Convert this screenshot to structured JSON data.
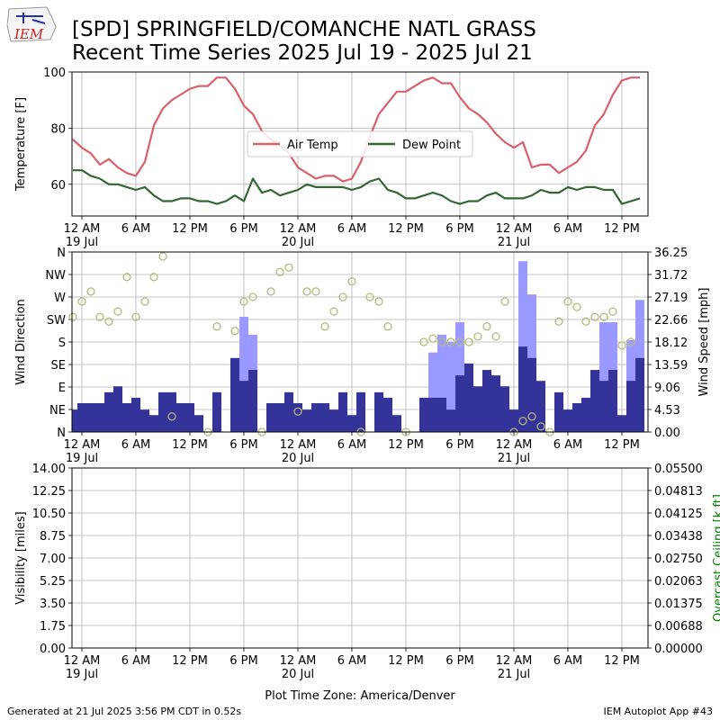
{
  "logo": "IEM",
  "footer": {
    "left": "Generated at 21 Jul 2025 3:56 PM CDT in 0.52s",
    "right": "IEM Autoplot App #43"
  },
  "chart_data": [
    {
      "type": "line",
      "title": "[SPD] SPRINGFIELD/COMANCHE NATL GRASS",
      "subtitle": "Recent Time Series 2025 Jul 19 - 2025 Jul 21",
      "ylabel": "Temperature [F]",
      "legend": "center",
      "grid": true,
      "xlim": [
        "2025-07-18T22:54",
        "2025-07-21T14:54"
      ],
      "xticks": [
        {
          "value": "2025-07-19T00:00",
          "label": "12 AM\n19 Jul"
        },
        {
          "value": "2025-07-19T06:00",
          "label": "6 AM"
        },
        {
          "value": "2025-07-19T12:00",
          "label": "12 PM"
        },
        {
          "value": "2025-07-19T18:00",
          "label": "6 PM"
        },
        {
          "value": "2025-07-20T00:00",
          "label": "12 AM\n20 Jul"
        },
        {
          "value": "2025-07-20T06:00",
          "label": "6 AM"
        },
        {
          "value": "2025-07-20T12:00",
          "label": "12 PM"
        },
        {
          "value": "2025-07-20T18:00",
          "label": "6 PM"
        },
        {
          "value": "2025-07-21T00:00",
          "label": "12 AM\n21 Jul"
        },
        {
          "value": "2025-07-21T06:00",
          "label": "6 AM"
        },
        {
          "value": "2025-07-21T12:00",
          "label": "12 PM"
        }
      ],
      "ylim": [
        48.7,
        100
      ],
      "yticks": [
        60,
        80,
        100
      ],
      "x": [
        "2025-07-18T23:00",
        "2025-07-19T00:00",
        "2025-07-19T01:00",
        "2025-07-19T02:00",
        "2025-07-19T03:00",
        "2025-07-19T04:00",
        "2025-07-19T05:00",
        "2025-07-19T06:00",
        "2025-07-19T07:00",
        "2025-07-19T08:00",
        "2025-07-19T09:00",
        "2025-07-19T10:00",
        "2025-07-19T11:00",
        "2025-07-19T12:00",
        "2025-07-19T13:00",
        "2025-07-19T14:00",
        "2025-07-19T15:00",
        "2025-07-19T16:00",
        "2025-07-19T17:00",
        "2025-07-19T18:00",
        "2025-07-19T19:00",
        "2025-07-19T20:00",
        "2025-07-19T21:00",
        "2025-07-19T22:00",
        "2025-07-19T23:00",
        "2025-07-20T00:00",
        "2025-07-20T01:00",
        "2025-07-20T02:00",
        "2025-07-20T03:00",
        "2025-07-20T04:00",
        "2025-07-20T05:00",
        "2025-07-20T06:00",
        "2025-07-20T07:00",
        "2025-07-20T08:00",
        "2025-07-20T09:00",
        "2025-07-20T10:00",
        "2025-07-20T11:00",
        "2025-07-20T12:00",
        "2025-07-20T13:00",
        "2025-07-20T14:00",
        "2025-07-20T15:00",
        "2025-07-20T16:00",
        "2025-07-20T17:00",
        "2025-07-20T18:00",
        "2025-07-20T19:00",
        "2025-07-20T20:00",
        "2025-07-20T21:00",
        "2025-07-20T22:00",
        "2025-07-20T23:00",
        "2025-07-21T00:00",
        "2025-07-21T01:00",
        "2025-07-21T02:00",
        "2025-07-21T03:00",
        "2025-07-21T04:00",
        "2025-07-21T05:00",
        "2025-07-21T06:00",
        "2025-07-21T07:00",
        "2025-07-21T08:00",
        "2025-07-21T09:00",
        "2025-07-21T10:00",
        "2025-07-21T11:00",
        "2025-07-21T12:00",
        "2025-07-21T13:00",
        "2025-07-21T14:00"
      ],
      "series": [
        {
          "name": "Air Temp",
          "color": "#d9606a",
          "values": [
            76,
            73,
            71,
            67,
            69,
            66,
            64,
            63,
            68,
            81,
            87,
            90,
            92,
            94,
            95,
            95,
            98,
            98,
            94,
            88,
            85,
            79,
            76,
            74,
            71,
            66,
            64,
            62,
            63,
            63,
            61,
            62,
            68,
            77,
            85,
            89,
            93,
            93,
            95,
            97,
            98,
            96,
            96,
            91,
            87,
            85,
            82,
            78,
            75,
            73,
            75,
            66,
            67,
            67,
            64,
            66,
            68,
            72,
            81,
            85,
            92,
            97,
            98,
            98
          ]
        },
        {
          "name": "Dew Point",
          "color": "#336633",
          "values": [
            65,
            65,
            63,
            62,
            60,
            60,
            59,
            58,
            59,
            56,
            54,
            54,
            55,
            55,
            54,
            54,
            53,
            54,
            56,
            54,
            62,
            57,
            58,
            56,
            57,
            58,
            60,
            59,
            59,
            59,
            59,
            58,
            59,
            61,
            62,
            58,
            57,
            55,
            55,
            56,
            57,
            56,
            54,
            53,
            54,
            54,
            56,
            57,
            55,
            55,
            55,
            56,
            58,
            57,
            57,
            59,
            58,
            59,
            59,
            58,
            58,
            53,
            54,
            55
          ]
        }
      ]
    },
    {
      "type": "bar",
      "ylabel": "Wind Direction",
      "y2label": "Wind Speed [mph]",
      "grid": true,
      "xlim": [
        "2025-07-18T22:54",
        "2025-07-21T14:54"
      ],
      "xticks": [
        {
          "value": "2025-07-19T00:00",
          "label": "12 AM\n19 Jul"
        },
        {
          "value": "2025-07-19T06:00",
          "label": "6 AM"
        },
        {
          "value": "2025-07-19T12:00",
          "label": "12 PM"
        },
        {
          "value": "2025-07-19T18:00",
          "label": "6 PM"
        },
        {
          "value": "2025-07-20T00:00",
          "label": "12 AM\n20 Jul"
        },
        {
          "value": "2025-07-20T06:00",
          "label": "6 AM"
        },
        {
          "value": "2025-07-20T12:00",
          "label": "12 PM"
        },
        {
          "value": "2025-07-20T18:00",
          "label": "6 PM"
        },
        {
          "value": "2025-07-21T00:00",
          "label": "12 AM\n21 Jul"
        },
        {
          "value": "2025-07-21T06:00",
          "label": "6 AM"
        },
        {
          "value": "2025-07-21T12:00",
          "label": "12 PM"
        }
      ],
      "ylim": [
        0,
        360
      ],
      "yticks": [
        {
          "value": 0,
          "label": "N"
        },
        {
          "value": 45,
          "label": "NE"
        },
        {
          "value": 90,
          "label": "E"
        },
        {
          "value": 135,
          "label": "SE"
        },
        {
          "value": 180,
          "label": "S"
        },
        {
          "value": 225,
          "label": "SW"
        },
        {
          "value": 270,
          "label": "W"
        },
        {
          "value": 315,
          "label": "NW"
        },
        {
          "value": 360,
          "label": "N"
        }
      ],
      "y2lim": [
        0,
        36.25
      ],
      "y2ticks": [
        {
          "value": 0,
          "label": "0.00"
        },
        4.53,
        9.06,
        13.59,
        18.12,
        22.66,
        27.19,
        31.72,
        36.25
      ],
      "x": [
        "2025-07-18T23:00",
        "2025-07-19T00:00",
        "2025-07-19T01:00",
        "2025-07-19T02:00",
        "2025-07-19T03:00",
        "2025-07-19T04:00",
        "2025-07-19T05:00",
        "2025-07-19T06:00",
        "2025-07-19T07:00",
        "2025-07-19T08:00",
        "2025-07-19T09:00",
        "2025-07-19T10:00",
        "2025-07-19T11:00",
        "2025-07-19T12:00",
        "2025-07-19T13:00",
        "2025-07-19T14:00",
        "2025-07-19T15:00",
        "2025-07-19T16:00",
        "2025-07-19T17:00",
        "2025-07-19T18:00",
        "2025-07-19T19:00",
        "2025-07-19T20:00",
        "2025-07-19T21:00",
        "2025-07-19T22:00",
        "2025-07-19T23:00",
        "2025-07-20T00:00",
        "2025-07-20T01:00",
        "2025-07-20T02:00",
        "2025-07-20T03:00",
        "2025-07-20T04:00",
        "2025-07-20T05:00",
        "2025-07-20T06:00",
        "2025-07-20T07:00",
        "2025-07-20T08:00",
        "2025-07-20T09:00",
        "2025-07-20T10:00",
        "2025-07-20T11:00",
        "2025-07-20T12:00",
        "2025-07-20T13:00",
        "2025-07-20T14:00",
        "2025-07-20T15:00",
        "2025-07-20T16:00",
        "2025-07-20T17:00",
        "2025-07-20T18:00",
        "2025-07-20T19:00",
        "2025-07-20T20:00",
        "2025-07-20T21:00",
        "2025-07-20T22:00",
        "2025-07-20T23:00",
        "2025-07-21T00:00",
        "2025-07-21T01:00",
        "2025-07-21T02:00",
        "2025-07-21T03:00",
        "2025-07-21T04:00",
        "2025-07-21T05:00",
        "2025-07-21T06:00",
        "2025-07-21T07:00",
        "2025-07-21T08:00",
        "2025-07-21T09:00",
        "2025-07-21T10:00",
        "2025-07-21T11:00",
        "2025-07-21T12:00",
        "2025-07-21T13:00",
        "2025-07-21T14:00"
      ],
      "series": [
        {
          "type": "bar",
          "axis": "y2",
          "color": "#9999ff",
          "values": [
            null,
            null,
            null,
            null,
            null,
            null,
            null,
            null,
            null,
            null,
            null,
            null,
            null,
            null,
            null,
            null,
            null,
            null,
            null,
            23.2,
            19.6,
            null,
            null,
            null,
            null,
            null,
            null,
            null,
            null,
            null,
            null,
            null,
            null,
            null,
            null,
            null,
            null,
            null,
            null,
            null,
            16,
            19.6,
            18.1,
            22.1,
            null,
            null,
            null,
            null,
            null,
            null,
            34.4,
            27.7,
            null,
            null,
            null,
            null,
            null,
            null,
            null,
            22.1,
            22.1,
            null,
            18.5,
            26.6
          ]
        },
        {
          "type": "bar",
          "axis": "y2",
          "color": "#333399",
          "values": [
            4.5,
            5.8,
            5.8,
            5.8,
            8,
            9.2,
            5.8,
            6.9,
            4.5,
            3.4,
            8,
            8,
            5.8,
            5.8,
            3.4,
            0,
            8,
            0,
            14.9,
            10.3,
            12.5,
            0,
            5.8,
            5.8,
            8,
            5.8,
            4.5,
            5.8,
            5.8,
            4.5,
            8,
            3.4,
            8,
            0,
            8,
            6.9,
            3.4,
            0,
            0,
            6.9,
            6.9,
            6.9,
            4.5,
            11.4,
            13.8,
            9.2,
            12.5,
            11.4,
            9.2,
            4.5,
            17.2,
            14.9,
            10.3,
            0,
            8,
            4.5,
            5.8,
            6.9,
            12.5,
            10.3,
            12.5,
            3.4,
            10.3,
            14.9
          ]
        },
        {
          "type": "scatter",
          "color": "#b8b87a",
          "values": [
            230,
            261,
            281,
            230,
            221,
            241,
            310,
            230,
            261,
            310,
            351,
            31,
            null,
            null,
            null,
            0,
            211,
            null,
            202,
            261,
            270,
            0,
            281,
            320,
            329,
            41,
            281,
            281,
            211,
            241,
            270,
            301,
            0,
            270,
            261,
            211,
            null,
            0,
            null,
            180,
            187,
            180,
            180,
            180,
            180,
            191,
            211,
            191,
            261,
            0,
            22,
            31,
            11,
            0,
            221,
            261,
            250,
            221,
            230,
            230,
            241,
            173,
            180,
            null
          ]
        }
      ]
    },
    {
      "type": "line",
      "ylabel": "Visibility [miles]",
      "y2label": "Overcast Ceiling [k ft]",
      "y2label_color": "#008000",
      "xlabel": "Plot Time Zone: America/Denver",
      "grid": true,
      "xlim": [
        "2025-07-18T22:54",
        "2025-07-21T14:54"
      ],
      "xticks": [
        {
          "value": "2025-07-19T00:00",
          "label": "12 AM\n19 Jul"
        },
        {
          "value": "2025-07-19T06:00",
          "label": "6 AM"
        },
        {
          "value": "2025-07-19T12:00",
          "label": "12 PM"
        },
        {
          "value": "2025-07-19T18:00",
          "label": "6 PM"
        },
        {
          "value": "2025-07-20T00:00",
          "label": "12 AM\n20 Jul"
        },
        {
          "value": "2025-07-20T06:00",
          "label": "6 AM"
        },
        {
          "value": "2025-07-20T12:00",
          "label": "12 PM"
        },
        {
          "value": "2025-07-20T18:00",
          "label": "6 PM"
        },
        {
          "value": "2025-07-21T00:00",
          "label": "12 AM\n21 Jul"
        },
        {
          "value": "2025-07-21T06:00",
          "label": "6 AM"
        },
        {
          "value": "2025-07-21T12:00",
          "label": "12 PM"
        }
      ],
      "ylim": [
        0,
        14
      ],
      "yticks": [
        {
          "value": 0,
          "label": "0.00"
        },
        1.75,
        {
          "value": 3.5,
          "label": "3.50"
        },
        5.25,
        {
          "value": 7,
          "label": "7.00"
        },
        8.75,
        {
          "value": 10.5,
          "label": "10.50"
        },
        12.25,
        {
          "value": 14,
          "label": "14.00"
        }
      ],
      "y2lim": [
        0,
        0.055
      ],
      "y2ticks": [
        {
          "value": 0,
          "label": "0.00000"
        },
        {
          "value": 0.006875,
          "label": "0.00688"
        },
        0.01375,
        {
          "value": 0.020625,
          "label": "0.02063"
        },
        {
          "value": 0.0275,
          "label": "0.02750"
        },
        {
          "value": 0.034375,
          "label": "0.03438"
        },
        0.04125,
        {
          "value": 0.048125,
          "label": "0.04813"
        },
        {
          "value": 0.055,
          "label": "0.05500"
        }
      ]
    }
  ]
}
